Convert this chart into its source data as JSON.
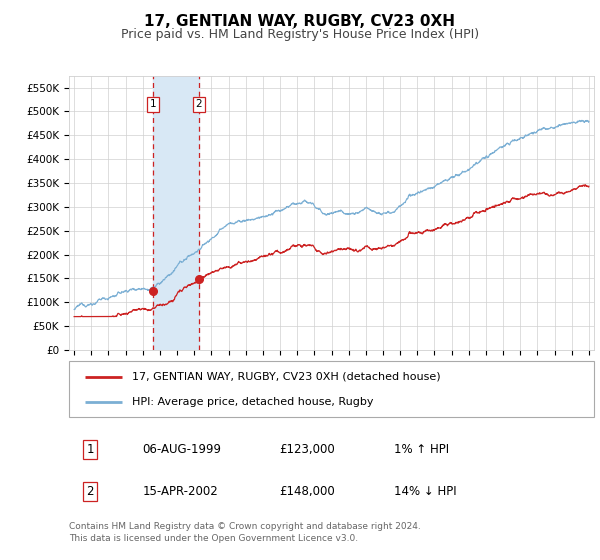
{
  "title": "17, GENTIAN WAY, RUGBY, CV23 0XH",
  "subtitle": "Price paid vs. HM Land Registry's House Price Index (HPI)",
  "ylabel_ticks": [
    "£0",
    "£50K",
    "£100K",
    "£150K",
    "£200K",
    "£250K",
    "£300K",
    "£350K",
    "£400K",
    "£450K",
    "£500K",
    "£550K"
  ],
  "ytick_values": [
    0,
    50000,
    100000,
    150000,
    200000,
    250000,
    300000,
    350000,
    400000,
    450000,
    500000,
    550000
  ],
  "ylim": [
    0,
    575000
  ],
  "xlim_start": 1994.7,
  "xlim_end": 2025.3,
  "sale1_date": 1999.59,
  "sale1_price": 123000,
  "sale2_date": 2002.28,
  "sale2_price": 148000,
  "hpi_line_color": "#7bafd4",
  "price_line_color": "#cc2222",
  "shade_color": "#d8e8f5",
  "vline_color": "#cc2222",
  "marker_color": "#cc2222",
  "grid_color": "#d0d0d0",
  "background_color": "#ffffff",
  "legend_label1": "17, GENTIAN WAY, RUGBY, CV23 0XH (detached house)",
  "legend_label2": "HPI: Average price, detached house, Rugby",
  "table_row1": [
    "1",
    "06-AUG-1999",
    "£123,000",
    "1% ↑ HPI"
  ],
  "table_row2": [
    "2",
    "15-APR-2002",
    "£148,000",
    "14% ↓ HPI"
  ],
  "footnote": "Contains HM Land Registry data © Crown copyright and database right 2024.\nThis data is licensed under the Open Government Licence v3.0.",
  "title_fontsize": 11,
  "subtitle_fontsize": 9,
  "tick_fontsize": 7.5,
  "legend_fontsize": 8,
  "table_fontsize": 8.5,
  "footnote_fontsize": 6.5
}
